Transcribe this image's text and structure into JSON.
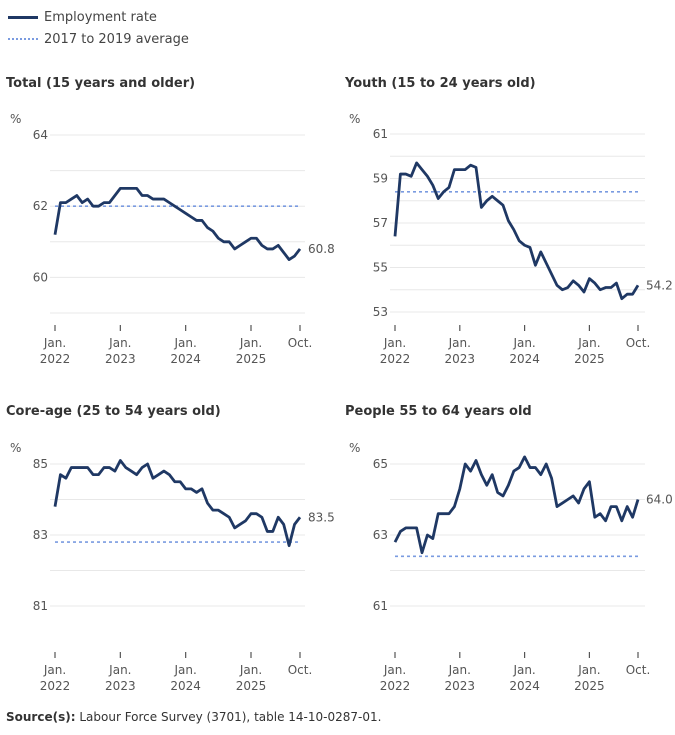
{
  "legend": {
    "series": "Employment rate",
    "average": "2017 to 2019 average"
  },
  "colors": {
    "series": "#1f3864",
    "average": "#7a9be0",
    "grid": "#e8e8e8"
  },
  "source": {
    "label": "Source(s):",
    "text": "Labour Force Survey (3701), table 14-10-0287-01."
  },
  "chart_data": [
    {
      "type": "line",
      "title": "Total (15 years and older)",
      "ylabel": "%",
      "ylim": [
        59,
        64
      ],
      "yticks": [
        60,
        62,
        64
      ],
      "grid": true,
      "xticks": [
        {
          "l1": "Jan.",
          "l2": "2022"
        },
        {
          "l1": "Jan.",
          "l2": "2023"
        },
        {
          "l1": "Jan.",
          "l2": "2024"
        },
        {
          "l1": "Jan.",
          "l2": "2025"
        },
        {
          "l1": "Oct.",
          "l2": ""
        }
      ],
      "x_start": "2022-01",
      "x_end": "2025-10",
      "last_label": "60.8",
      "average": 62.0,
      "values": [
        61.2,
        62.1,
        62.1,
        62.2,
        62.3,
        62.1,
        62.2,
        62.0,
        62.0,
        62.1,
        62.1,
        62.3,
        62.5,
        62.5,
        62.5,
        62.5,
        62.3,
        62.3,
        62.2,
        62.2,
        62.2,
        62.1,
        62.0,
        61.9,
        61.8,
        61.7,
        61.6,
        61.6,
        61.4,
        61.3,
        61.1,
        61.0,
        61.0,
        60.8,
        60.9,
        61.0,
        61.1,
        61.1,
        60.9,
        60.8,
        60.8,
        60.9,
        60.7,
        60.5,
        60.6,
        60.8
      ]
    },
    {
      "type": "line",
      "title": "Youth (15 to 24 years old)",
      "ylabel": "%",
      "ylim": [
        53,
        61
      ],
      "yticks": [
        53,
        55,
        57,
        59,
        61
      ],
      "grid": true,
      "xticks": [
        {
          "l1": "Jan.",
          "l2": "2022"
        },
        {
          "l1": "Jan.",
          "l2": "2023"
        },
        {
          "l1": "Jan.",
          "l2": "2024"
        },
        {
          "l1": "Jan.",
          "l2": "2025"
        },
        {
          "l1": "Oct.",
          "l2": ""
        }
      ],
      "x_start": "2022-01",
      "x_end": "2025-10",
      "last_label": "54.2",
      "average": 58.4,
      "values": [
        56.4,
        59.2,
        59.2,
        59.1,
        59.7,
        59.4,
        59.1,
        58.7,
        58.1,
        58.4,
        58.6,
        59.4,
        59.4,
        59.4,
        59.6,
        59.5,
        57.7,
        58.0,
        58.2,
        58.0,
        57.8,
        57.1,
        56.7,
        56.2,
        56.0,
        55.9,
        55.1,
        55.7,
        55.2,
        54.7,
        54.2,
        54.0,
        54.1,
        54.4,
        54.2,
        53.9,
        54.5,
        54.3,
        54.0,
        54.1,
        54.1,
        54.3,
        53.6,
        53.8,
        53.8,
        54.2
      ]
    },
    {
      "type": "line",
      "title": "Core-age (25 to 54 years old)",
      "ylabel": "%",
      "ylim": [
        81,
        85
      ],
      "yticks": [
        81,
        83,
        85
      ],
      "grid": true,
      "xticks": [
        {
          "l1": "Jan.",
          "l2": "2022"
        },
        {
          "l1": "Jan.",
          "l2": "2023"
        },
        {
          "l1": "Jan.",
          "l2": "2024"
        },
        {
          "l1": "Jan.",
          "l2": "2025"
        },
        {
          "l1": "Oct.",
          "l2": ""
        }
      ],
      "x_start": "2022-01",
      "x_end": "2025-10",
      "last_label": "83.5",
      "average": 82.8,
      "values": [
        83.8,
        84.7,
        84.6,
        84.9,
        84.9,
        84.9,
        84.9,
        84.7,
        84.7,
        84.9,
        84.9,
        84.8,
        85.1,
        84.9,
        84.8,
        84.7,
        84.9,
        85.0,
        84.6,
        84.7,
        84.8,
        84.7,
        84.5,
        84.5,
        84.3,
        84.3,
        84.2,
        84.3,
        83.9,
        83.7,
        83.7,
        83.6,
        83.5,
        83.2,
        83.3,
        83.4,
        83.6,
        83.6,
        83.5,
        83.1,
        83.1,
        83.5,
        83.3,
        82.7,
        83.3,
        83.5
      ]
    },
    {
      "type": "line",
      "title": "People 55 to 64 years old",
      "ylabel": "%",
      "ylim": [
        61,
        65
      ],
      "yticks": [
        61,
        63,
        65
      ],
      "grid": true,
      "xticks": [
        {
          "l1": "Jan.",
          "l2": "2022"
        },
        {
          "l1": "Jan.",
          "l2": "2023"
        },
        {
          "l1": "Jan.",
          "l2": "2024"
        },
        {
          "l1": "Jan.",
          "l2": "2025"
        },
        {
          "l1": "Oct.",
          "l2": ""
        }
      ],
      "x_start": "2022-01",
      "x_end": "2025-10",
      "last_label": "64.0",
      "average": 62.4,
      "values": [
        62.8,
        63.1,
        63.2,
        63.2,
        63.2,
        62.5,
        63.0,
        62.9,
        63.6,
        63.6,
        63.6,
        63.8,
        64.3,
        65.0,
        64.8,
        65.1,
        64.7,
        64.4,
        64.7,
        64.2,
        64.1,
        64.4,
        64.8,
        64.9,
        65.2,
        64.9,
        64.9,
        64.7,
        65.0,
        64.6,
        63.8,
        63.9,
        64.0,
        64.1,
        63.9,
        64.3,
        64.5,
        63.5,
        63.6,
        63.4,
        63.8,
        63.8,
        63.4,
        63.8,
        63.5,
        64.0
      ]
    }
  ]
}
